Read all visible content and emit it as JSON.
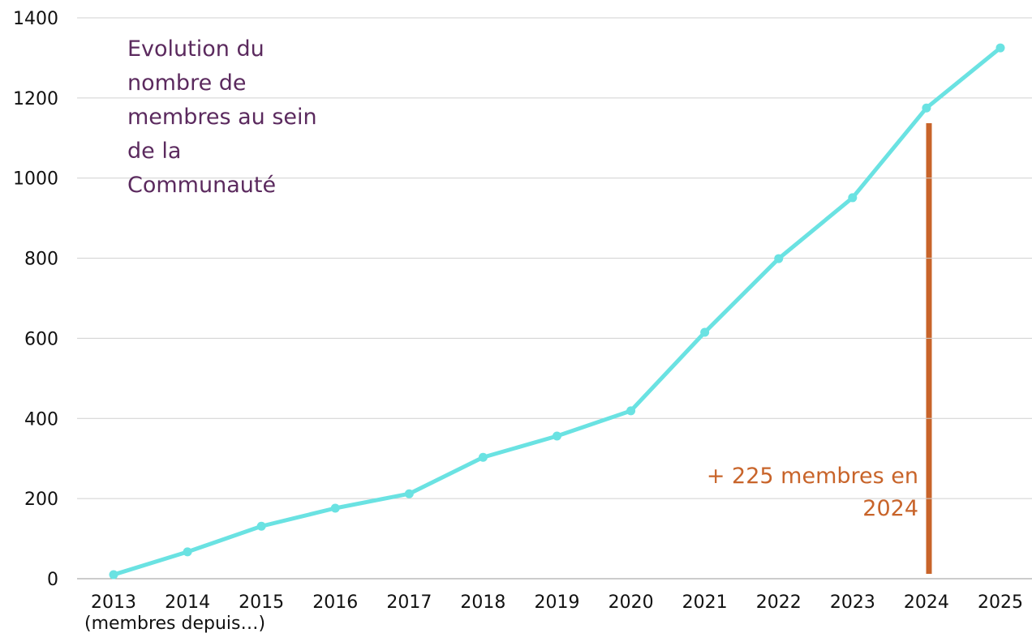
{
  "chart_data": {
    "type": "line",
    "title": "Evolution du nombre de membres au sein de la Communauté",
    "annotation": "+ 225 membres en 2024",
    "x_label": "(membres depuis…)",
    "categories": [
      "2013",
      "2014",
      "2015",
      "2016",
      "2017",
      "2018",
      "2019",
      "2020",
      "2021",
      "2022",
      "2023",
      "2024",
      "2025"
    ],
    "series": [
      {
        "name": "membres",
        "color": "#6ae2e2",
        "values": [
          10,
          67,
          131,
          176,
          212,
          303,
          356,
          419,
          615,
          799,
          951,
          1175,
          1325
        ]
      }
    ],
    "ylim": [
      0,
      1400
    ],
    "yticks": [
      0,
      200,
      400,
      600,
      800,
      1000,
      1200,
      1400
    ],
    "grid": true
  }
}
